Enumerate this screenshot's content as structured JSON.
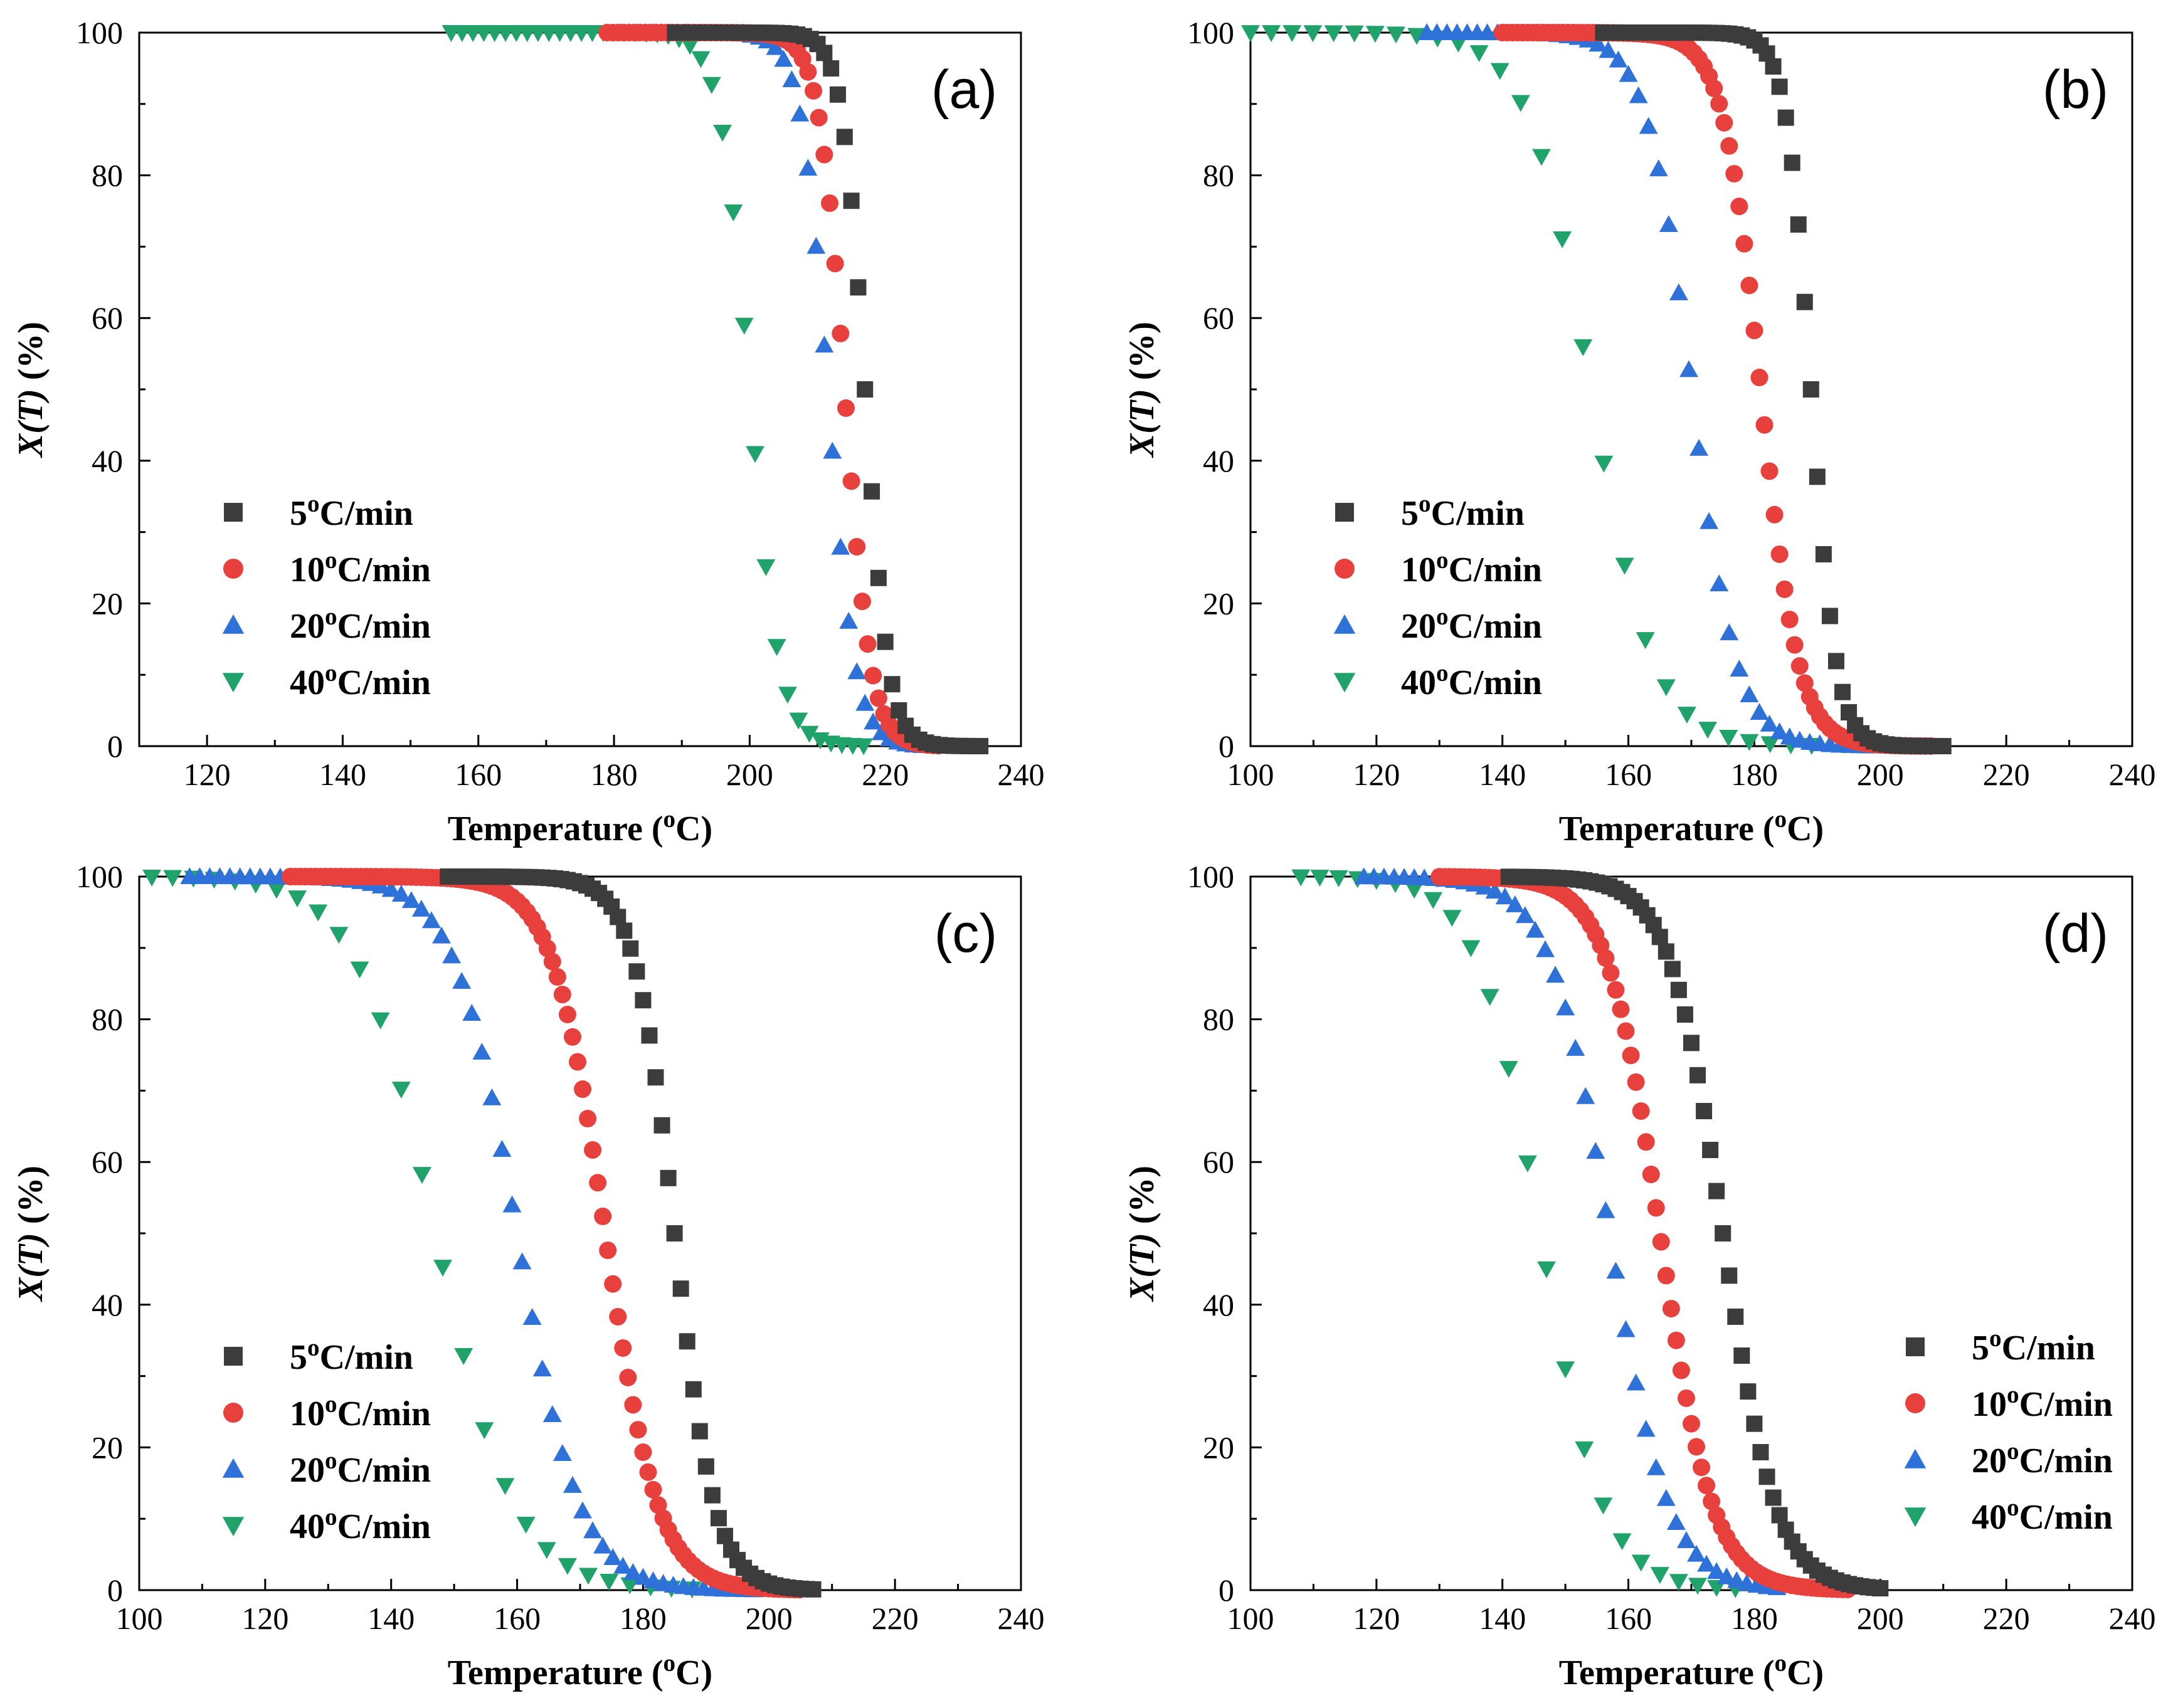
{
  "series_styles": [
    {
      "name": "5°C/min",
      "color": "#3c3c3c",
      "marker": "square"
    },
    {
      "name": "10°C/min",
      "color": "#e8403d",
      "marker": "circle"
    },
    {
      "name": "20°C/min",
      "color": "#2e72d9",
      "marker": "triangle-up"
    },
    {
      "name": "40°C/min",
      "color": "#20a36a",
      "marker": "triangle-down"
    }
  ],
  "chart_data": [
    {
      "type": "scatter",
      "panel_label": "(a)",
      "title": "",
      "xlabel": "Temperature (°C)",
      "ylabel": "X(T) (%)",
      "xlim": [
        110,
        240
      ],
      "ylim": [
        0,
        100
      ],
      "xticks": [
        120,
        140,
        160,
        180,
        200,
        220,
        240
      ],
      "yticks": [
        0,
        20,
        40,
        60,
        80,
        100
      ],
      "legend_position": "center-left",
      "series": [
        {
          "name": "5°C/min",
          "t_start": 189,
          "t_end": 234,
          "t_half": 217,
          "k": 1.7,
          "step": 1.0
        },
        {
          "name": "10°C/min",
          "t_start": 179,
          "t_end": 228,
          "t_half": 214,
          "k": 1.9,
          "step": 0.8
        },
        {
          "name": "20°C/min",
          "t_start": 181,
          "t_end": 226,
          "t_half": 211.5,
          "k": 2.0,
          "step": 1.2
        },
        {
          "name": "40°C/min",
          "t_start": 156,
          "t_end": 218,
          "t_half": 200,
          "k": 2.2,
          "step": 1.6
        }
      ]
    },
    {
      "type": "scatter",
      "panel_label": "(b)",
      "title": "",
      "xlabel": "Temperature (°C)",
      "ylabel": "X(T) (%)",
      "xlim": [
        100,
        240
      ],
      "ylim": [
        0,
        100
      ],
      "xticks": [
        100,
        120,
        140,
        160,
        180,
        200,
        220,
        240
      ],
      "yticks": [
        0,
        20,
        40,
        60,
        80,
        100
      ],
      "legend_position": "center-left",
      "series": [
        {
          "name": "5°C/min",
          "t_start": 156,
          "t_end": 210,
          "t_half": 189,
          "k": 2.0,
          "step": 1.0
        },
        {
          "name": "10°C/min",
          "t_start": 140,
          "t_end": 208,
          "t_half": 181,
          "k": 3.0,
          "step": 0.8
        },
        {
          "name": "20°C/min",
          "t_start": 128,
          "t_end": 205,
          "t_half": 170,
          "k": 3.6,
          "step": 1.6
        },
        {
          "name": "40°C/min",
          "t_start": 100,
          "t_end": 190,
          "t_half": 154,
          "k": 5.0,
          "step": 3.3
        }
      ]
    },
    {
      "type": "scatter",
      "panel_label": "(c)",
      "title": "",
      "xlabel": "Temperature (°C)",
      "ylabel": "X(T) (%)",
      "xlim": [
        100,
        240
      ],
      "ylim": [
        0,
        100
      ],
      "xticks": [
        100,
        120,
        140,
        160,
        180,
        200,
        220,
        240
      ],
      "yticks": [
        0,
        20,
        40,
        60,
        80,
        100
      ],
      "legend_position": "center-left",
      "series": [
        {
          "name": "5°C/min",
          "t_start": 149,
          "t_end": 207,
          "t_half": 185,
          "k": 3.2,
          "step": 1.0
        },
        {
          "name": "10°C/min",
          "t_start": 124,
          "t_end": 205,
          "t_half": 174,
          "k": 4.2,
          "step": 0.8
        },
        {
          "name": "20°C/min",
          "t_start": 108,
          "t_end": 198,
          "t_half": 160,
          "k": 5.0,
          "step": 1.6
        },
        {
          "name": "40°C/min",
          "t_start": 102,
          "t_end": 190,
          "t_half": 147,
          "k": 6.3,
          "step": 3.3
        }
      ]
    },
    {
      "type": "scatter",
      "panel_label": "(d)",
      "title": "",
      "xlabel": "Temperature (°C)",
      "ylabel": "X(T) (%)",
      "xlim": [
        100,
        240
      ],
      "ylim": [
        0,
        100
      ],
      "xticks": [
        100,
        120,
        140,
        160,
        180,
        200,
        220,
        240
      ],
      "yticks": [
        0,
        20,
        40,
        60,
        80,
        100
      ],
      "legend_position": "center-right",
      "series": [
        {
          "name": "5°C/min",
          "t_start": 141,
          "t_end": 200,
          "t_half": 175,
          "k": 4.2,
          "step": 1.0
        },
        {
          "name": "10°C/min",
          "t_start": 130,
          "t_end": 195,
          "t_half": 165,
          "k": 4.2,
          "step": 0.8
        },
        {
          "name": "20°C/min",
          "t_start": 118,
          "t_end": 185,
          "t_half": 157,
          "k": 4.7,
          "step": 1.6
        },
        {
          "name": "40°C/min",
          "t_start": 108,
          "t_end": 178,
          "t_half": 146,
          "k": 5.0,
          "step": 3.0
        }
      ]
    }
  ]
}
